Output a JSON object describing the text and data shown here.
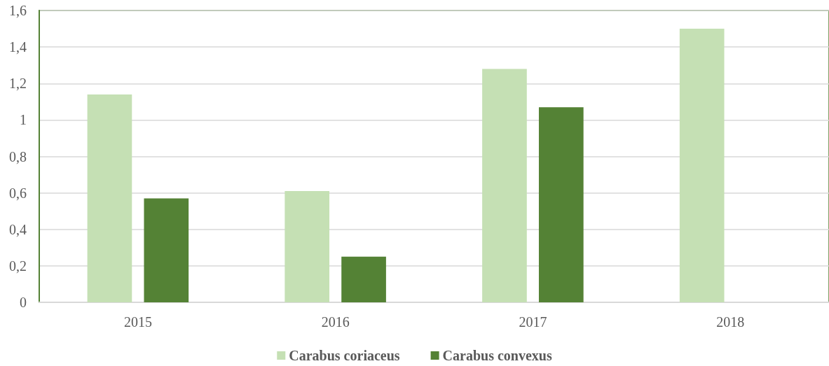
{
  "chart_data": {
    "type": "bar",
    "categories": [
      "2015",
      "2016",
      "2017",
      "2018"
    ],
    "series": [
      {
        "name": "Carabus coriaceus",
        "color": "#c5e0b4",
        "values": [
          1.14,
          0.61,
          1.28,
          1.5
        ]
      },
      {
        "name": "Carabus convexus",
        "color": "#548235",
        "values": [
          0.57,
          0.25,
          1.07,
          null
        ]
      }
    ],
    "ylim": [
      0,
      1.6
    ],
    "yticks": [
      0,
      {
        "value": 0.2,
        "label": "0,2"
      },
      {
        "value": 0.4,
        "label": "0,4"
      },
      {
        "value": 0.6,
        "label": "0,6"
      },
      {
        "value": 0.8,
        "label": "0,8"
      },
      1,
      {
        "value": 1.2,
        "label": "1,2"
      },
      {
        "value": 1.4,
        "label": "1,4"
      },
      {
        "value": 1.6,
        "label": "1,6"
      }
    ],
    "grid": "y",
    "legend": "bottom"
  }
}
